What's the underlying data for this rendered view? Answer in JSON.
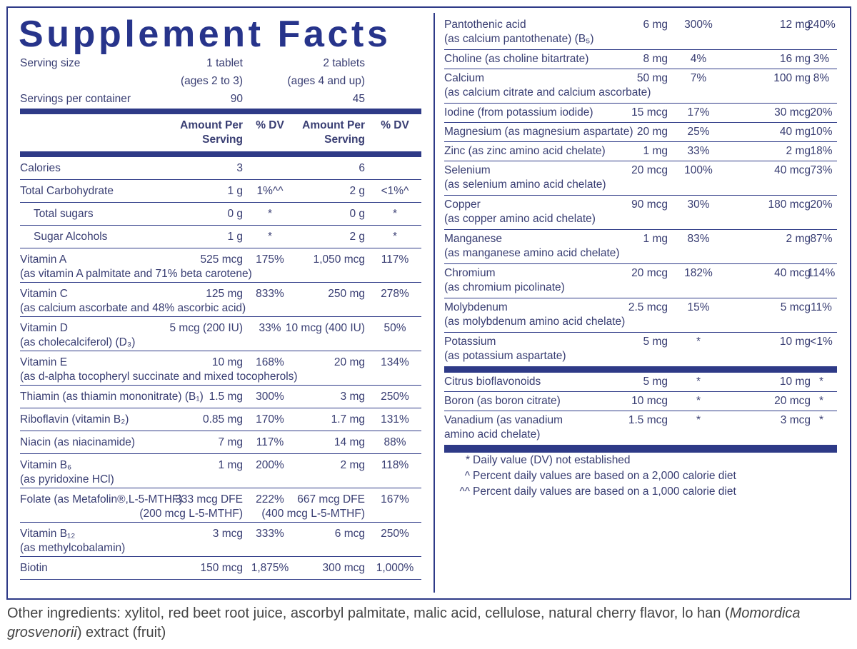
{
  "title": "Supplement Facts",
  "serving": {
    "serving_size": {
      "label": "Serving size",
      "column_1": [
        "1 tablet",
        "(ages 2 to 3)"
      ],
      "column_2": [
        "2 tablets",
        "(ages 4 and up)"
      ]
    },
    "servings_per_container": {
      "label": "Servings per container",
      "column_1": "90",
      "column_2": "45"
    }
  },
  "column_headers": [
    [
      "Amount Per",
      "Serving"
    ],
    [
      "% DV"
    ],
    [
      "Amount Per",
      "Serving"
    ],
    [
      "% DV"
    ]
  ],
  "left_rows": [
    {
      "name": "Calories",
      "amount_1": "3",
      "amount_2": "6"
    },
    {
      "name": "Total Carbohydrate",
      "amount_1": "1 g",
      "dv_1": "1%^^",
      "amount_2": "2 g",
      "dv_2": "<1%^",
      "sub_rows": [
        {
          "name": "Total sugars",
          "amount_1": "0 g",
          "dv_1": "*",
          "amount_2": "0 g",
          "dv_2": "*"
        },
        {
          "name": "Sugar Alcohols",
          "amount_1": "1 g",
          "dv_1": "*",
          "amount_2": "2 g",
          "dv_2": "*"
        }
      ]
    },
    {
      "name": "Vitamin A",
      "detail": "(as vitamin A palmitate and 71% beta carotene)",
      "amount_1": "525 mcg",
      "dv_1": "175%",
      "amount_2": "1,050 mcg",
      "dv_2": "117%"
    },
    {
      "name": "Vitamin C",
      "detail": "(as calcium ascorbate and 48% ascorbic acid)",
      "amount_1": "125 mg",
      "dv_1": "833%",
      "amount_2": "250 mg",
      "dv_2": "278%"
    },
    {
      "name": "Vitamin D",
      "detail": "(as cholecalciferol) (D₃)",
      "amount_1": "5 mcg (200 IU)",
      "dv_1": "33%",
      "amount_2": "10 mcg (400 IU)",
      "dv_2": "50%"
    },
    {
      "name": "Vitamin E",
      "detail": "(as d-alpha tocopheryl succinate and mixed tocopherols)",
      "amount_1": "10 mg",
      "dv_1": "168%",
      "amount_2": "20 mg",
      "dv_2": "134%"
    },
    {
      "name": "Thiamin (as thiamin mononitrate) (B₁)",
      "amount_1": "1.5 mg",
      "dv_1": "300%",
      "amount_2": "3 mg",
      "dv_2": "250%"
    },
    {
      "name": "Riboflavin (vitamin B₂)",
      "amount_1": "0.85 mg",
      "dv_1": "170%",
      "amount_2": "1.7 mg",
      "dv_2": "131%"
    },
    {
      "name": "Niacin (as niacinamide)",
      "amount_1": "7 mg",
      "dv_1": "117%",
      "amount_2": "14 mg",
      "dv_2": "88%"
    },
    {
      "name": "Vitamin B₆",
      "detail": "(as pyridoxine HCl)",
      "amount_1": "1 mg",
      "dv_1": "200%",
      "amount_2": "2 mg",
      "dv_2": "118%"
    },
    {
      "name": "Folate (as Metafolin®,L-5-MTHF)",
      "amount_1": "333 mcg DFE",
      "amount_1_detail": "(200 mcg L-5-MTHF)",
      "dv_1": "222%",
      "amount_2": "667 mcg DFE",
      "amount_2_detail": "(400 mcg L-5-MTHF)",
      "dv_2": "167%"
    },
    {
      "name": "Vitamin B₁₂",
      "detail": "(as methylcobalamin)",
      "amount_1": "3 mcg",
      "dv_1": "333%",
      "amount_2": "6 mcg",
      "dv_2": "250%"
    },
    {
      "name": "Biotin",
      "amount_1": "150 mcg",
      "dv_1": "1,875%",
      "amount_2": "300 mcg",
      "dv_2": "1,000%"
    }
  ],
  "right_groups": [
    [
      {
        "name": "Pantothenic acid",
        "detail": "(as calcium pantothenate) (B₅)",
        "amount_1": "6 mg",
        "dv_1": "300%",
        "amount_2": "12 mg",
        "dv_2": "240%"
      },
      {
        "name": "Choline (as choline bitartrate)",
        "amount_1": "8 mg",
        "dv_1": "4%",
        "amount_2": "16 mg",
        "dv_2": "3%"
      },
      {
        "name": "Calcium",
        "detail": "(as calcium citrate and calcium ascorbate)",
        "amount_1": "50 mg",
        "dv_1": "7%",
        "amount_2": "100 mg",
        "dv_2": "8%"
      },
      {
        "name": "Iodine (from potassium iodide)",
        "amount_1": "15 mcg",
        "dv_1": "17%",
        "amount_2": "30 mcg",
        "dv_2": "20%"
      },
      {
        "name": "Magnesium (as magnesium aspartate)",
        "amount_1": "20 mg",
        "dv_1": "25%",
        "amount_2": "40 mg",
        "dv_2": "10%"
      },
      {
        "name": "Zinc (as zinc amino acid chelate)",
        "amount_1": "1 mg",
        "dv_1": "33%",
        "amount_2": "2 mg",
        "dv_2": "18%"
      },
      {
        "name": "Selenium",
        "detail": "(as selenium amino acid chelate)",
        "amount_1": "20 mcg",
        "dv_1": "100%",
        "amount_2": "40 mcg",
        "dv_2": "73%"
      },
      {
        "name": "Copper",
        "detail": "(as copper amino acid chelate)",
        "amount_1": "90 mcg",
        "dv_1": "30%",
        "amount_2": "180 mcg",
        "dv_2": "20%"
      },
      {
        "name": "Manganese",
        "detail": "(as manganese amino acid chelate)",
        "amount_1": "1 mg",
        "dv_1": "83%",
        "amount_2": "2 mg",
        "dv_2": "87%"
      },
      {
        "name": "Chromium",
        "detail": "(as chromium picolinate)",
        "amount_1": "20 mcg",
        "dv_1": "182%",
        "amount_2": "40 mcg",
        "dv_2": "114%"
      },
      {
        "name": "Molybdenum",
        "detail": "(as molybdenum amino acid chelate)",
        "amount_1": "2.5 mcg",
        "dv_1": "15%",
        "amount_2": "5 mcg",
        "dv_2": "11%"
      },
      {
        "name": "Potassium",
        "detail": "(as potassium aspartate)",
        "amount_1": "5 mg",
        "dv_1": "*",
        "amount_2": "10 mg",
        "dv_2": "<1%"
      }
    ],
    [
      {
        "name": "Citrus bioflavonoids",
        "amount_1": "5 mg",
        "dv_1": "*",
        "amount_2": "10 mg",
        "dv_2": "*"
      },
      {
        "name": "Boron (as boron citrate)",
        "amount_1": "10 mcg",
        "dv_1": "*",
        "amount_2": "20 mcg",
        "dv_2": "*"
      },
      {
        "name": "Vanadium (as vanadium",
        "detail": "amino acid chelate)",
        "amount_1": "1.5 mcg",
        "dv_1": "*",
        "amount_2": "3 mcg",
        "dv_2": "*"
      }
    ]
  ],
  "footnotes": [
    {
      "symbol": "*",
      "text": "Daily value (DV) not established"
    },
    {
      "symbol": "^",
      "text": "Percent daily values are based on a 2,000 calorie diet"
    },
    {
      "symbol": "^^",
      "text": "Percent daily values are based on a 1,000 calorie diet"
    }
  ],
  "other_ingredients": [
    {
      "text": "Other ingredients: xylitol, red beet root juice, ascorbyl palmitate, malic acid, cellulose, natural cherry flavor, lo han ("
    },
    {
      "text": "Momordica grosvenorii",
      "italic": true
    },
    {
      "text": ")  extract (fruit)"
    }
  ]
}
